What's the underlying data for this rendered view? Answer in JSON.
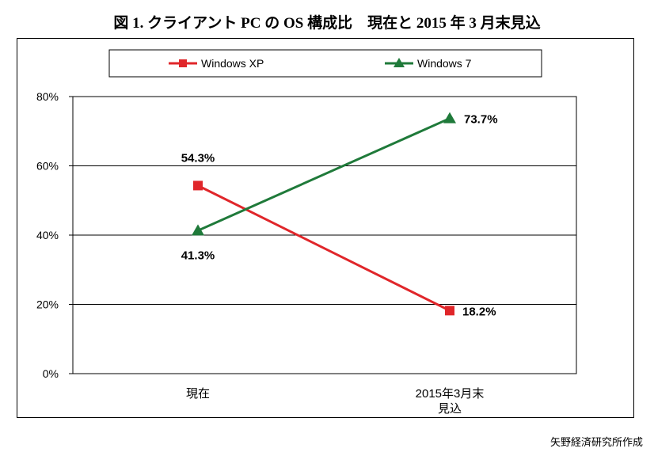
{
  "title": "図 1. クライアント PC の OS 構成比　現在と 2015 年 3 月末見込",
  "source": "矢野経済研究所作成",
  "chart_data": {
    "type": "line",
    "categories": [
      [
        "現在"
      ],
      [
        "2015年3月末",
        "見込"
      ]
    ],
    "ylim": [
      0,
      80
    ],
    "yticks": [
      "0%",
      "20%",
      "40%",
      "60%",
      "80%"
    ],
    "ytick_values": [
      0,
      20,
      40,
      60,
      80
    ],
    "grid": true,
    "legend_position": "top",
    "series": [
      {
        "name": "Windows XP",
        "values": [
          54.3,
          18.2
        ],
        "labels": [
          "54.3%",
          "18.2%"
        ],
        "color": "#e0262a",
        "marker": "square"
      },
      {
        "name": "Windows 7",
        "values": [
          41.3,
          73.7
        ],
        "labels": [
          "41.3%",
          "73.7%"
        ],
        "color": "#1f7a3a",
        "marker": "triangle"
      }
    ]
  }
}
